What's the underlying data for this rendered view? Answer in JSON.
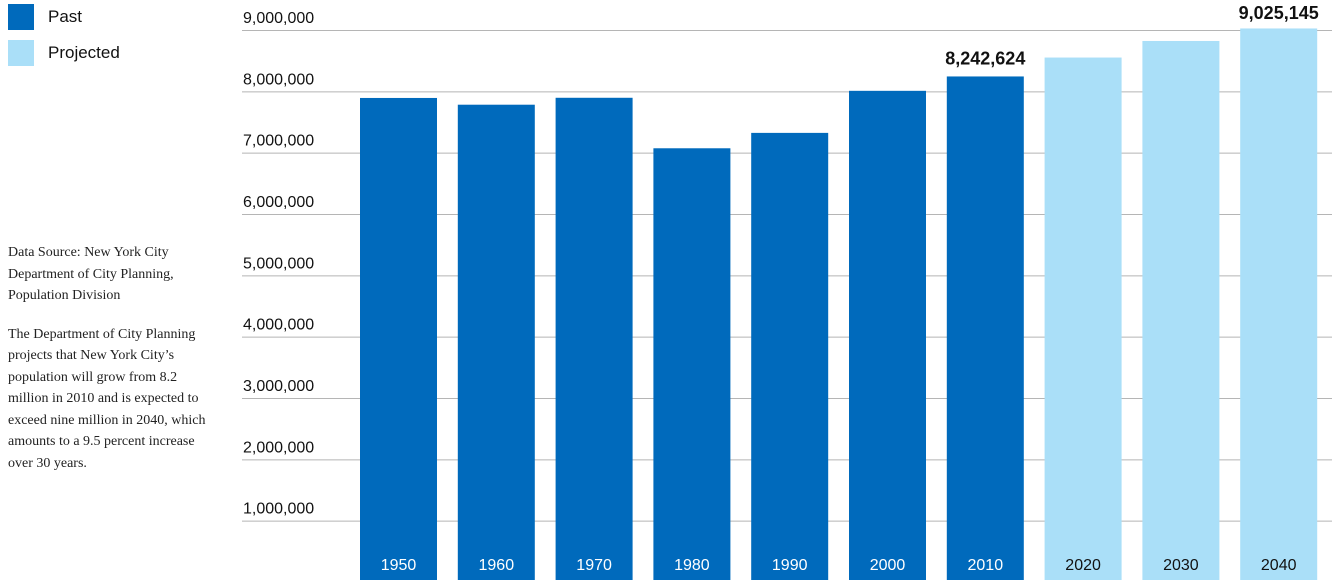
{
  "legend": [
    {
      "label": "Past",
      "color": "#006abc"
    },
    {
      "label": "Projected",
      "color": "#aadff8"
    }
  ],
  "notes": {
    "source": "Data Source: New York City Department of City Planning, Population Division",
    "description": "The Department of City Planning projects that New York City’s population will grow from 8.2 million in 2010 and is expected to exceed nine million in 2040, which amounts to a 9.5 percent increase over 30 years."
  },
  "chart_data": {
    "type": "bar",
    "categories": [
      "1950",
      "1960",
      "1970",
      "1980",
      "1990",
      "2000",
      "2010",
      "2020",
      "2030",
      "2040"
    ],
    "series": [
      {
        "name": "Past",
        "values": [
          7891957,
          7781984,
          7894862,
          7071639,
          7322564,
          8008278,
          8242624,
          null,
          null,
          null
        ],
        "color": "#006abc"
      },
      {
        "name": "Projected",
        "values": [
          null,
          null,
          null,
          null,
          null,
          null,
          null,
          8550971,
          8821027,
          9025145
        ],
        "color": "#aadff8"
      }
    ],
    "value_labels": [
      {
        "category": "2010",
        "text": "8,242,624"
      },
      {
        "category": "2040",
        "text": "9,025,145"
      }
    ],
    "yticks": [
      "1,000,000",
      "2,000,000",
      "3,000,000",
      "4,000,000",
      "5,000,000",
      "6,000,000",
      "7,000,000",
      "8,000,000",
      "9,000,000"
    ],
    "ytick_values": [
      1000000,
      2000000,
      3000000,
      4000000,
      5000000,
      6000000,
      7000000,
      8000000,
      9000000
    ],
    "ylim": [
      0,
      9000000
    ],
    "grid": true,
    "legend_position": "top-left"
  }
}
